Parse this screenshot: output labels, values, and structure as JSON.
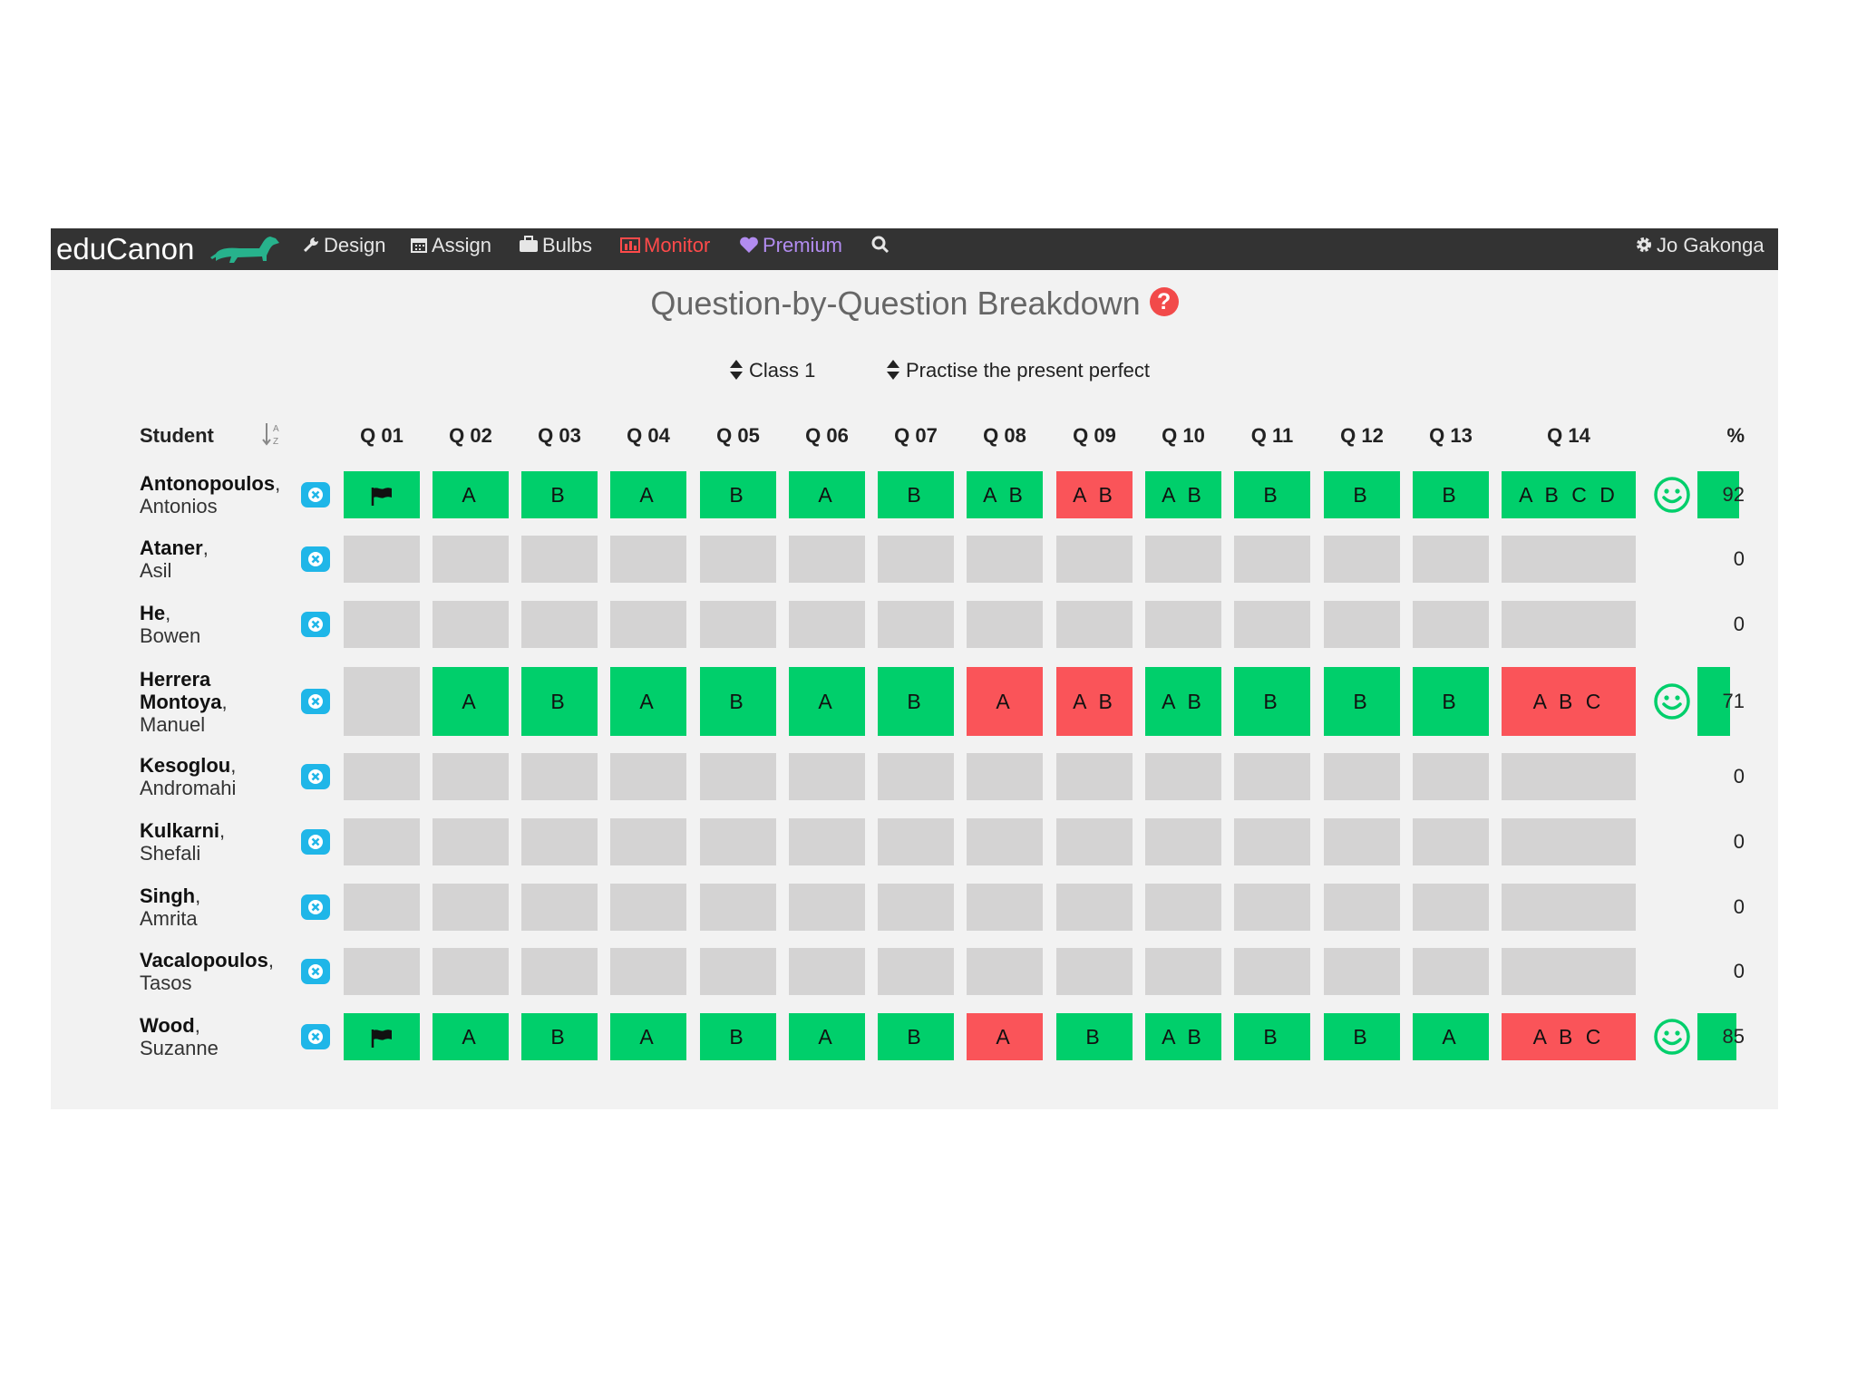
{
  "navbar": {
    "brand": "eduCanon",
    "items": [
      {
        "label": "Design",
        "icon": "wrench-icon"
      },
      {
        "label": "Assign",
        "icon": "calendar-icon"
      },
      {
        "label": "Bulbs",
        "icon": "briefcase-icon"
      },
      {
        "label": "Monitor",
        "icon": "bar-chart-icon"
      },
      {
        "label": "Premium",
        "icon": "heart-icon"
      }
    ],
    "search_icon": "search-icon",
    "user": {
      "name": "Jo Gakonga",
      "icon": "gear-icon"
    },
    "colors": {
      "background": "#333333",
      "monitor": "#ff4a4a",
      "premium": "#b28cf0"
    }
  },
  "page": {
    "title": "Question-by-Question Breakdown",
    "help_icon": "?",
    "filters": {
      "class": "Class 1",
      "assignment": "Practise the present perfect"
    }
  },
  "table": {
    "student_header": "Student",
    "sort_icon": "sort-alpha-icon",
    "questions": [
      "Q 01",
      "Q 02",
      "Q 03",
      "Q 04",
      "Q 05",
      "Q 06",
      "Q 07",
      "Q 08",
      "Q 09",
      "Q 10",
      "Q 11",
      "Q 12",
      "Q 13",
      "Q 14"
    ],
    "percent_header": "%",
    "students": [
      {
        "last": "Antonopoulos",
        "first": "Antonios",
        "percent": "92",
        "smiley": true,
        "answers": [
          {
            "s": "c",
            "t": "",
            "flag": true
          },
          {
            "s": "c",
            "t": "A"
          },
          {
            "s": "c",
            "t": "B"
          },
          {
            "s": "c",
            "t": "A"
          },
          {
            "s": "c",
            "t": "B"
          },
          {
            "s": "c",
            "t": "A"
          },
          {
            "s": "c",
            "t": "B"
          },
          {
            "s": "c",
            "t": "A B"
          },
          {
            "s": "i",
            "t": "A B"
          },
          {
            "s": "c",
            "t": "A B"
          },
          {
            "s": "c",
            "t": "B"
          },
          {
            "s": "c",
            "t": "B"
          },
          {
            "s": "c",
            "t": "B"
          },
          {
            "s": "c",
            "t": "A B C D"
          }
        ]
      },
      {
        "last": "Ataner",
        "first": "Asil",
        "percent": "0",
        "smiley": false,
        "answers": []
      },
      {
        "last": "He",
        "first": "Bowen",
        "percent": "0",
        "smiley": false,
        "answers": []
      },
      {
        "last": "Herrera Montoya",
        "first": "Manuel",
        "percent": "71",
        "smiley": true,
        "answers": [
          {
            "s": "e",
            "t": ""
          },
          {
            "s": "c",
            "t": "A"
          },
          {
            "s": "c",
            "t": "B"
          },
          {
            "s": "c",
            "t": "A"
          },
          {
            "s": "c",
            "t": "B"
          },
          {
            "s": "c",
            "t": "A"
          },
          {
            "s": "c",
            "t": "B"
          },
          {
            "s": "i",
            "t": "A"
          },
          {
            "s": "i",
            "t": "A B"
          },
          {
            "s": "c",
            "t": "A B"
          },
          {
            "s": "c",
            "t": "B"
          },
          {
            "s": "c",
            "t": "B"
          },
          {
            "s": "c",
            "t": "B"
          },
          {
            "s": "i",
            "t": "A B C"
          }
        ]
      },
      {
        "last": "Kesoglou",
        "first": "Andromahi",
        "percent": "0",
        "smiley": false,
        "answers": []
      },
      {
        "last": "Kulkarni",
        "first": "Shefali",
        "percent": "0",
        "smiley": false,
        "answers": []
      },
      {
        "last": "Singh",
        "first": "Amrita",
        "percent": "0",
        "smiley": false,
        "answers": []
      },
      {
        "last": "Vacalopoulos",
        "first": "Tasos",
        "percent": "0",
        "smiley": false,
        "answers": []
      },
      {
        "last": "Wood",
        "first": "Suzanne",
        "percent": "85",
        "smiley": true,
        "answers": [
          {
            "s": "c",
            "t": "",
            "flag": true
          },
          {
            "s": "c",
            "t": "A"
          },
          {
            "s": "c",
            "t": "B"
          },
          {
            "s": "c",
            "t": "A"
          },
          {
            "s": "c",
            "t": "B"
          },
          {
            "s": "c",
            "t": "A"
          },
          {
            "s": "c",
            "t": "B"
          },
          {
            "s": "i",
            "t": "A"
          },
          {
            "s": "c",
            "t": "B"
          },
          {
            "s": "c",
            "t": "A B"
          },
          {
            "s": "c",
            "t": "B"
          },
          {
            "s": "c",
            "t": "B"
          },
          {
            "s": "c",
            "t": "A"
          },
          {
            "s": "i",
            "t": "A B C"
          }
        ]
      }
    ]
  },
  "colors": {
    "correct": "#00cf6b",
    "incorrect": "#fa5459",
    "unanswered": "#d4d3d3",
    "reset": "#1fb6e8",
    "smiley": "#00cf6b"
  }
}
